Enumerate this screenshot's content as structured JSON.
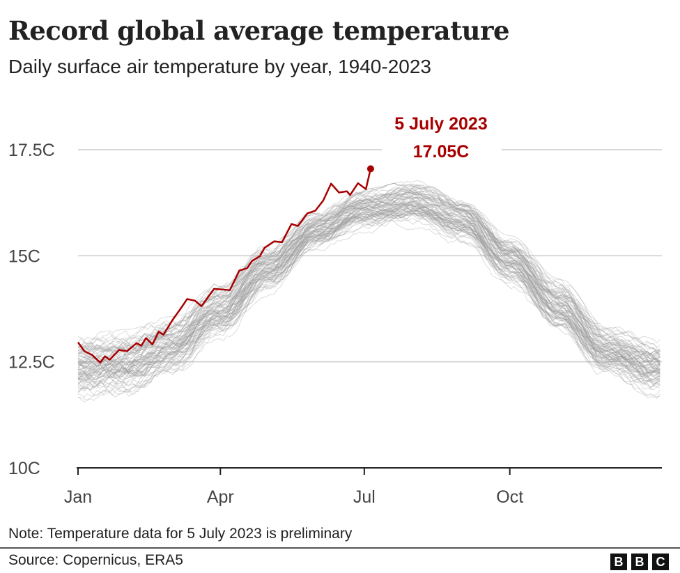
{
  "title": "Record global average temperature",
  "subtitle": "Daily surface air temperature by year, 1940-2023",
  "note": "Note: Temperature data for 5 July 2023 is preliminary",
  "source": "Source: Copernicus, ERA5",
  "logo": "BBC",
  "chart_data": {
    "type": "line",
    "title": "Record global average temperature",
    "subtitle": "Daily surface air temperature by year, 1940-2023",
    "xlabel": "",
    "ylabel": "",
    "ylim": [
      10,
      17.5
    ],
    "yticks": [
      10,
      12.5,
      15,
      17.5
    ],
    "ytick_labels": [
      "10C",
      "12.5C",
      "15C",
      "17.5C"
    ],
    "xlim": [
      "01-01",
      "12-31"
    ],
    "xticks": [
      "01-01",
      "04-01",
      "07-01",
      "10-01"
    ],
    "xtick_labels": [
      "Jan",
      "Apr",
      "Jul",
      "Oct"
    ],
    "grid": "horizontal",
    "colors": {
      "highlight": "#a80000",
      "other_years": "#9a9a9a",
      "grid": "#cccccc"
    },
    "highlight_series": {
      "year": "2023",
      "points": [
        [
          "01-01",
          12.96
        ],
        [
          "01-05",
          12.75
        ],
        [
          "01-10",
          12.66
        ],
        [
          "01-15",
          12.48
        ],
        [
          "01-18",
          12.63
        ],
        [
          "01-21",
          12.55
        ],
        [
          "01-27",
          12.78
        ],
        [
          "02-01",
          12.75
        ],
        [
          "02-07",
          12.94
        ],
        [
          "02-10",
          12.88
        ],
        [
          "02-13",
          13.06
        ],
        [
          "02-17",
          12.91
        ],
        [
          "02-21",
          13.21
        ],
        [
          "02-24",
          13.14
        ],
        [
          "03-02",
          13.5
        ],
        [
          "03-07",
          13.76
        ],
        [
          "03-11",
          13.98
        ],
        [
          "03-16",
          13.94
        ],
        [
          "03-20",
          13.81
        ],
        [
          "03-28",
          14.22
        ],
        [
          "04-07",
          14.19
        ],
        [
          "04-13",
          14.65
        ],
        [
          "04-18",
          14.71
        ],
        [
          "04-21",
          14.88
        ],
        [
          "04-26",
          14.99
        ],
        [
          "04-29",
          15.19
        ],
        [
          "05-05",
          15.34
        ],
        [
          "05-10",
          15.32
        ],
        [
          "05-16",
          15.75
        ],
        [
          "05-20",
          15.7
        ],
        [
          "05-26",
          16.0
        ],
        [
          "05-31",
          16.06
        ],
        [
          "06-05",
          16.3
        ],
        [
          "06-10",
          16.7
        ],
        [
          "06-15",
          16.49
        ],
        [
          "06-20",
          16.52
        ],
        [
          "06-22",
          16.43
        ],
        [
          "06-27",
          16.71
        ],
        [
          "07-02",
          16.57
        ],
        [
          "07-05",
          17.05
        ]
      ]
    },
    "other_years_range": {
      "years": "1940-2022",
      "dates": [
        "01-01",
        "02-01",
        "03-01",
        "04-01",
        "05-01",
        "06-01",
        "07-01",
        "08-01",
        "09-01",
        "10-01",
        "11-01",
        "12-01",
        "12-31"
      ],
      "low": [
        11.4,
        11.5,
        12.0,
        12.9,
        14.0,
        15.0,
        15.5,
        15.6,
        15.2,
        14.2,
        13.0,
        12.0,
        11.5
      ],
      "high": [
        13.2,
        13.3,
        13.6,
        14.4,
        15.3,
        16.1,
        16.6,
        16.8,
        16.4,
        15.5,
        14.5,
        13.4,
        13.1
      ]
    },
    "annotation": {
      "date": "5 July 2023",
      "value": "17.05C"
    }
  }
}
